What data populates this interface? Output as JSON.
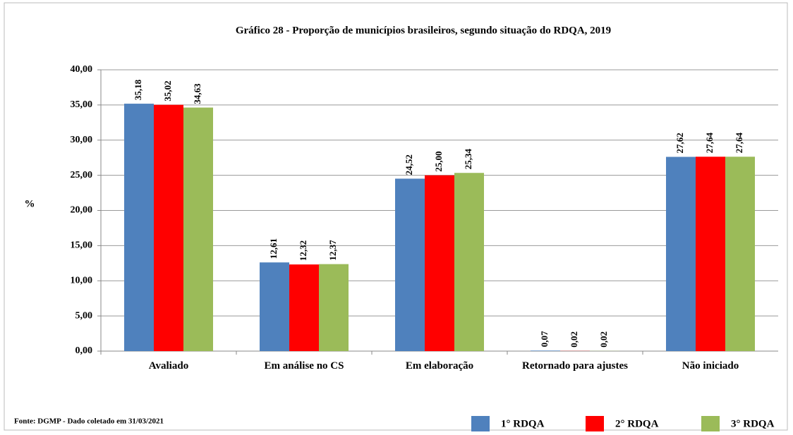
{
  "chart_data": {
    "type": "bar",
    "title": "Gráfico 28 - Proporção de municípios brasileiros,  segundo situação do RDQA, 2019",
    "y_label": "%",
    "source": "Fonte: DGMP - Dado coletado em 31/03/2021",
    "categories": [
      "Avaliado",
      "Em análise no CS",
      "Em elaboração",
      "Retornado para ajustes",
      "Não iniciado"
    ],
    "series": [
      {
        "name": "1° RDQA",
        "color": "#4f81bd",
        "values": [
          35.18,
          12.61,
          24.52,
          0.07,
          27.62
        ],
        "value_labels": [
          "35,18",
          "12,61",
          "24,52",
          "0,07",
          "27,62"
        ]
      },
      {
        "name": "2° RDQA",
        "color": "#ff0000",
        "values": [
          35.02,
          12.32,
          25.0,
          0.02,
          27.64
        ],
        "value_labels": [
          "35,02",
          "12,32",
          "25,00",
          "0,02",
          "27,64"
        ]
      },
      {
        "name": "3° RDQA",
        "color": "#9bbb59",
        "values": [
          34.63,
          12.37,
          25.34,
          0.02,
          27.64
        ],
        "value_labels": [
          "34,63",
          "12,37",
          "25,34",
          "0,02",
          "27,64"
        ]
      }
    ],
    "ylim": [
      0,
      40
    ],
    "yticks": [
      {
        "value": 0,
        "label": "0,00"
      },
      {
        "value": 5,
        "label": "5,00"
      },
      {
        "value": 10,
        "label": "10,00"
      },
      {
        "value": 15,
        "label": "15,00"
      },
      {
        "value": 20,
        "label": "20,00"
      },
      {
        "value": 25,
        "label": "25,00"
      },
      {
        "value": 30,
        "label": "30,00"
      },
      {
        "value": 35,
        "label": "35,00"
      },
      {
        "value": 40,
        "label": "40,00"
      }
    ],
    "grid": true,
    "legend": "bottom-right"
  }
}
